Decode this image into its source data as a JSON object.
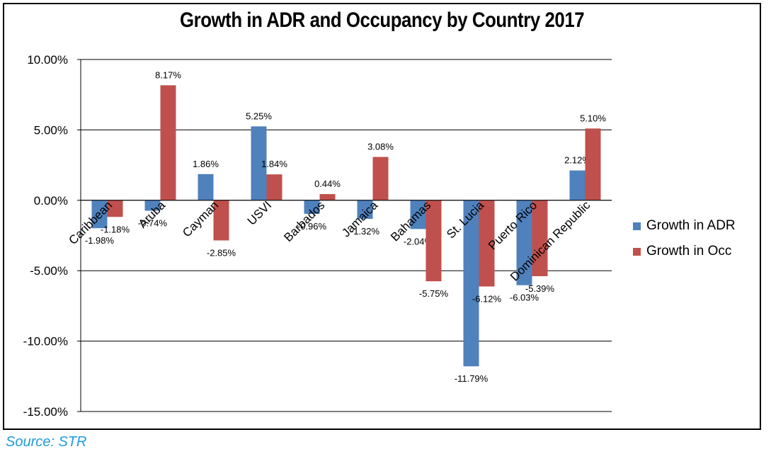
{
  "colors": {
    "adr": "#4f81bd",
    "occ": "#c0504d",
    "source": "#1f9bde"
  },
  "source_text": "Source: STR",
  "chart_data": {
    "type": "bar",
    "title": "Growth in ADR and Occupancy by Country 2017",
    "categories": [
      "Caribbean",
      "Aruba",
      "Cayman",
      "USVI",
      "Barbados",
      "Jamaica",
      "Bahamas",
      "St. Lucia",
      "Puerto Rico",
      "Dominican Republic"
    ],
    "series": [
      {
        "name": "Growth in ADR",
        "values": [
          -1.98,
          -0.74,
          1.86,
          5.25,
          -0.96,
          -1.32,
          -2.04,
          -11.79,
          -6.03,
          2.12
        ],
        "labels": [
          "-1.98%",
          "-0.74%",
          "1.86%",
          "5.25%",
          "-0.96%",
          "-1.32%",
          "-2.04%",
          "-11.79%",
          "-6.03%",
          "2.12%"
        ]
      },
      {
        "name": "Growth in Occ",
        "values": [
          -1.18,
          8.17,
          -2.85,
          1.84,
          0.44,
          3.08,
          -5.75,
          -6.12,
          -5.39,
          5.1
        ],
        "labels": [
          "-1.18%",
          "8.17%",
          "-2.85%",
          "1.84%",
          "0.44%",
          "3.08%",
          "-5.75%",
          "-6.12%",
          "-5.39%",
          "5.10%"
        ]
      }
    ],
    "yticks": [
      10,
      5,
      0,
      -5,
      -10,
      -15
    ],
    "ytick_labels": [
      "10.00%",
      "5.00%",
      "0.00%",
      "-5.00%",
      "-10.00%",
      "-15.00%"
    ],
    "ylim": [
      -15,
      10
    ],
    "grid": true,
    "legend": "right"
  }
}
